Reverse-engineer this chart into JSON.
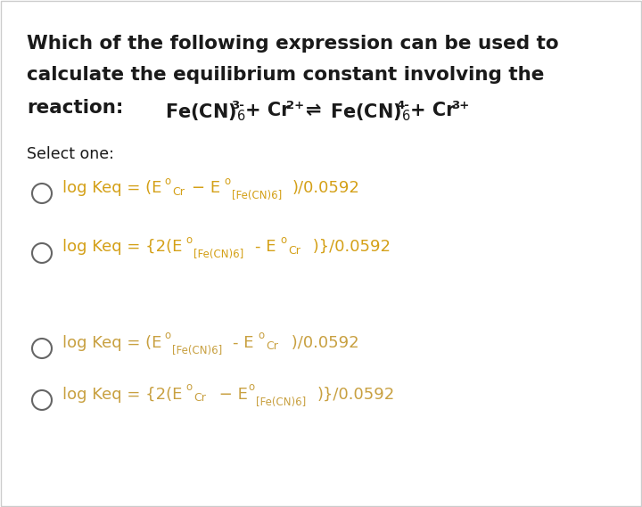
{
  "bg_color": "#ffffff",
  "text_color": "#1a1a1a",
  "orange_color": "#d4a017",
  "light_orange": "#c8a040",
  "title_line1": "Which of the following expression can be used to",
  "title_line2": "calculate the equilibrium constant involving the",
  "select_one": "Select one:"
}
